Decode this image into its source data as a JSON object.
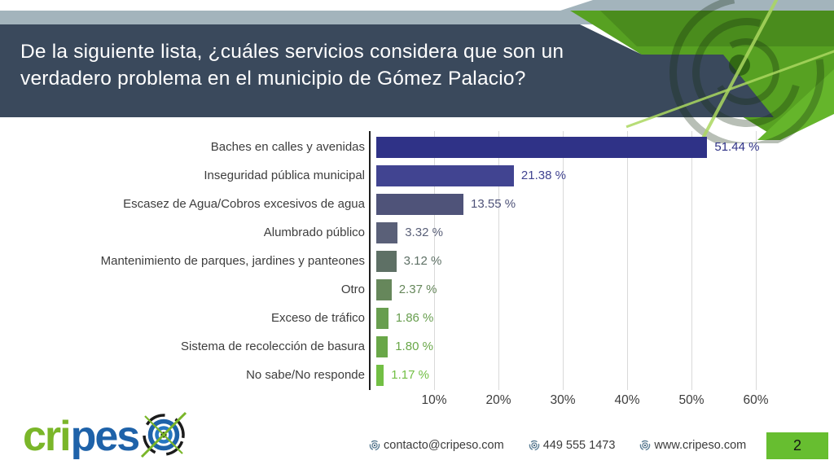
{
  "header": {
    "question_lines": [
      "De la siguiente lista, ¿cuáles servicios considera que son un",
      "verdadero problema en el municipio de Gómez Palacio?"
    ]
  },
  "chart_data": {
    "type": "bar",
    "orientation": "horizontal",
    "title": "",
    "xlabel": "",
    "ylabel": "",
    "xlim": [
      0,
      63
    ],
    "grid": "vertical",
    "categories": [
      "Baches en calles y avenidas",
      "Inseguridad pública municipal",
      "Escasez de Agua/Cobros excesivos de agua",
      "Alumbrado público",
      "Mantenimiento de parques, jardines y panteones",
      "Otro",
      "Exceso de tráfico",
      "Sistema de recolección de basura",
      "No sabe/No responde"
    ],
    "values": [
      51.44,
      21.38,
      13.55,
      3.32,
      3.12,
      2.37,
      1.86,
      1.8,
      1.17
    ],
    "value_labels": [
      "51.44 %",
      "21.38 %",
      "13.55 %",
      "3.32 %",
      "3.12 %",
      "2.37 %",
      "1.86 %",
      "1.80 %",
      "1.17 %"
    ],
    "bar_colors": [
      "#2f3287",
      "#414491",
      "#4f5379",
      "#5a6078",
      "#5e7065",
      "#66875b",
      "#689e4f",
      "#69a748",
      "#72bf44"
    ],
    "xticks": [
      {
        "label": "10%",
        "value": 10
      },
      {
        "label": "20%",
        "value": 20
      },
      {
        "label": "30%",
        "value": 30
      },
      {
        "label": "40%",
        "value": 40
      },
      {
        "label": "50%",
        "value": 50
      },
      {
        "label": "60%",
        "value": 60
      }
    ]
  },
  "footer": {
    "logo": {
      "part1": "cri",
      "part2": "pes"
    },
    "contacts": [
      {
        "icon": "target-icon",
        "text": "contacto@cripeso.com"
      },
      {
        "icon": "target-icon",
        "text": "449 555 1473"
      },
      {
        "icon": "target-icon",
        "text": "www.cripeso.com"
      }
    ],
    "page_number": "2"
  },
  "colors": {
    "header_bg": "#3a495c",
    "gray_strip": "#a3b4bc",
    "green_main": "#57a122",
    "green_dark": "#4a8c1d",
    "green_bright": "#65b52b",
    "page_box": "#67be30",
    "logo_green": "#7ab629",
    "logo_blue": "#1e62a9"
  }
}
